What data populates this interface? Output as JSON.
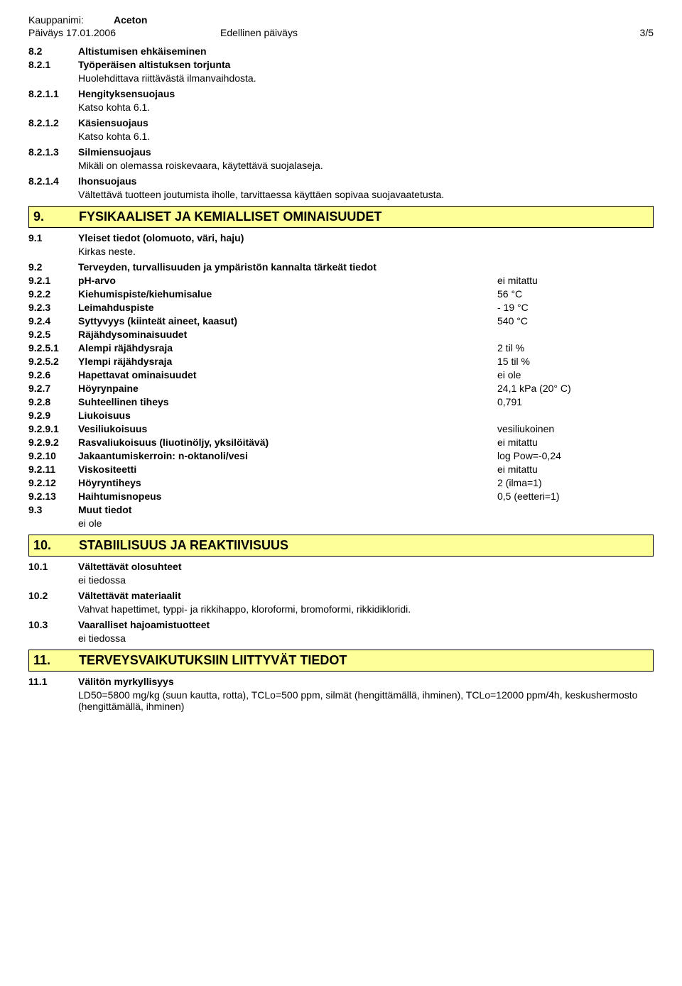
{
  "header": {
    "trade_label": "Kauppanimi:",
    "trade_value": "Aceton",
    "date": "Päiväys 17.01.2006",
    "prev_label": "Edellinen päiväys",
    "page": "3/5"
  },
  "pre_rows": [
    {
      "num": "8.2",
      "label": "Altistumisen ehkäiseminen",
      "bold": true
    },
    {
      "num": "8.2.1",
      "label": "Työperäisen altistuksen torjunta",
      "bold": true
    },
    {
      "indent": "Huolehdittava riittävästä ilmanvaihdosta."
    },
    {
      "num": "8.2.1.1",
      "label": "Hengityksensuojaus",
      "bold": true
    },
    {
      "indent": "Katso kohta 6.1."
    },
    {
      "num": "8.2.1.2",
      "label": "Käsiensuojaus",
      "bold": true
    },
    {
      "indent": "Katso kohta 6.1."
    },
    {
      "num": "8.2.1.3",
      "label": "Silmiensuojaus",
      "bold": true
    },
    {
      "indent": "Mikäli on olemassa roiskevaara, käytettävä suojalaseja."
    },
    {
      "num": "8.2.1.4",
      "label": "Ihonsuojaus",
      "bold": true
    },
    {
      "indent": "Vältettävä tuotteen joutumista iholle, tarvittaessa käyttäen sopivaa suojavaatetusta."
    }
  ],
  "section9": {
    "num": "9.",
    "title": "FYSIKAALISET JA KEMIALLISET OMINAISUUDET"
  },
  "s9_rows": [
    {
      "num": "9.1",
      "label": "Yleiset tiedot (olomuoto, väri, haju)",
      "bold": true
    },
    {
      "indent": "Kirkas neste."
    },
    {
      "num": "9.2",
      "label": "Terveyden, turvallisuuden ja ympäristön kannalta tärkeät tiedot",
      "bold": true
    },
    {
      "num": "9.2.1",
      "label": "pH-arvo",
      "bold": true,
      "val": "ei mitattu"
    },
    {
      "num": "9.2.2",
      "label": "Kiehumispiste/kiehumisalue",
      "bold": true,
      "val": "56 °C"
    },
    {
      "num": "9.2.3",
      "label": "Leimahduspiste",
      "bold": true,
      "val": "- 19 °C"
    },
    {
      "num": "9.2.4",
      "label": "Syttyvyys (kiinteät aineet, kaasut)",
      "bold": true,
      "val": "540 °C"
    },
    {
      "num": "9.2.5",
      "label": "Räjähdysominaisuudet",
      "bold": true
    },
    {
      "num": "9.2.5.1",
      "label": "Alempi räjähdysraja",
      "bold": true,
      "val": "2  til %"
    },
    {
      "num": "9.2.5.2",
      "label": "Ylempi räjähdysraja",
      "bold": true,
      "val": "15  til %"
    },
    {
      "num": "9.2.6",
      "label": "Hapettavat ominaisuudet",
      "bold": true,
      "val": "ei ole"
    },
    {
      "num": "9.2.7",
      "label": "Höyrynpaine",
      "bold": true,
      "val": "24,1 kPa (20° C)"
    },
    {
      "num": "9.2.8",
      "label": "Suhteellinen tiheys",
      "bold": true,
      "val": "0,791"
    },
    {
      "num": "9.2.9",
      "label": "Liukoisuus",
      "bold": true
    },
    {
      "num": "9.2.9.1",
      "label": "Vesiliukoisuus",
      "bold": true,
      "val": "vesiliukoinen"
    },
    {
      "num": "9.2.9.2",
      "label": "Rasvaliukoisuus (liuotinöljy, yksilöitävä)",
      "bold": true,
      "val": "ei mitattu"
    },
    {
      "num": "9.2.10",
      "label": "Jakaantumiskerroin: n-oktanoli/vesi",
      "bold": true,
      "val": "log Pow=-0,24"
    },
    {
      "num": "9.2.11",
      "label": "Viskositeetti",
      "bold": true,
      "val": "ei mitattu"
    },
    {
      "num": "9.2.12",
      "label": "Höyryntiheys",
      "bold": true,
      "val": "2  (ilma=1)"
    },
    {
      "num": "9.2.13",
      "label": "Haihtumisnopeus",
      "bold": true,
      "val": "0,5  (eetteri=1)"
    },
    {
      "num": "9.3",
      "label": "Muut tiedot",
      "bold": true
    },
    {
      "indent": "ei ole"
    }
  ],
  "section10": {
    "num": "10.",
    "title": "STABIILISUUS JA REAKTIIVISUUS"
  },
  "s10_rows": [
    {
      "num": "10.1",
      "label": "Vältettävät olosuhteet",
      "bold": true
    },
    {
      "indent": "ei tiedossa"
    },
    {
      "num": "10.2",
      "label": "Vältettävät materiaalit",
      "bold": true
    },
    {
      "indent": "Vahvat hapettimet, typpi- ja rikkihappo, kloroformi, bromoformi, rikkidikloridi."
    },
    {
      "num": "10.3",
      "label": "Vaaralliset hajoamistuotteet",
      "bold": true
    },
    {
      "indent": "ei tiedossa"
    }
  ],
  "section11": {
    "num": "11.",
    "title": "TERVEYSVAIKUTUKSIIN LIITTYVÄT TIEDOT"
  },
  "s11_rows": [
    {
      "num": "11.1",
      "label": "Välitön myrkyllisyys",
      "bold": true
    },
    {
      "indent": "LD50=5800 mg/kg (suun kautta, rotta), TCLo=500 ppm, silmät (hengittämällä, ihminen), TCLo=12000 ppm/4h, keskushermosto (hengittämällä, ihminen)"
    }
  ]
}
